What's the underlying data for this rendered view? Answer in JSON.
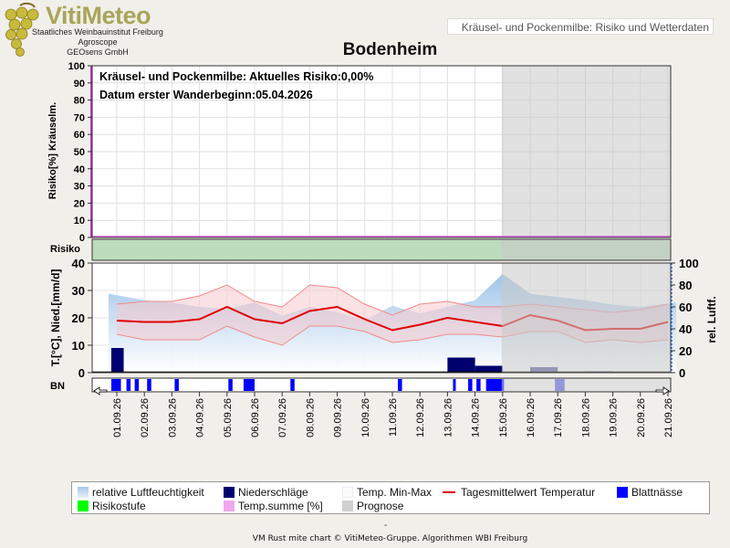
{
  "header": {
    "logo_title": "VitiMeteo",
    "logo_lines": [
      "Staatliches Weinbauinstitut Freiburg",
      "Agroscope",
      "GEOsens GmbH"
    ],
    "top_right_label": "Kräusel- und Pockenmilbe: Risiko und Wetterdaten",
    "page_title": "Bodenheim"
  },
  "chart_data": {
    "type": "line",
    "annotations": [
      "Kräusel- und Pockenmilbe: Aktuelles Risiko:0,00%",
      "Datum  erster Wanderbeginn:05.04.2026"
    ],
    "risk_panel": {
      "ylabel": "Risiko[%] Kräuselm.",
      "ylim": [
        0,
        100
      ],
      "yticks": [
        0,
        10,
        20,
        30,
        40,
        50,
        60,
        70,
        80,
        90,
        100
      ],
      "temp_summe_percent": 0,
      "risk_percent": 0
    },
    "risk_strip_label": "Risiko",
    "weather_panel": {
      "ylabel_left": "T.[°C], Nied.[mm/d]",
      "ylabel_right": "rel. Luftf.",
      "ylim_left": [
        0,
        40
      ],
      "yticks_left": [
        0,
        10,
        20,
        30,
        40
      ],
      "ylim_right": [
        0,
        100
      ],
      "yticks_right": [
        0,
        20,
        40,
        60,
        80,
        100
      ]
    },
    "bn_strip_label": "BN",
    "x_dates": [
      "01.09.26",
      "02.09.26",
      "03.09.26",
      "04.09.26",
      "05.09.26",
      "06.09.26",
      "07.09.26",
      "08.09.26",
      "09.09.26",
      "10.09.26",
      "11.09.26",
      "12.09.26",
      "13.09.26",
      "14.09.26",
      "15.09.26",
      "16.09.26",
      "17.09.26",
      "18.09.26",
      "19.09.26",
      "20.09.26",
      "21.09.26"
    ],
    "prognose_start_index": 14,
    "series": [
      {
        "name": "Tagesmittelwert Temperatur",
        "color": "#e00000",
        "x": [
          0,
          1,
          2,
          3,
          4,
          5,
          6,
          7,
          8,
          9,
          10,
          11,
          12,
          13,
          14,
          15,
          16,
          17,
          18,
          19,
          20
        ],
        "values": [
          19,
          18.5,
          18.5,
          19.5,
          24,
          19.5,
          18,
          22.5,
          24,
          19.5,
          15.5,
          17.5,
          20,
          18.5,
          17,
          21,
          19,
          15.5,
          16,
          16,
          18.5
        ]
      },
      {
        "name": "Temp. Max",
        "x": [
          0,
          1,
          2,
          3,
          4,
          5,
          6,
          7,
          8,
          9,
          10,
          11,
          12,
          13,
          14,
          15,
          16,
          17,
          18,
          19,
          20
        ],
        "values": [
          25,
          26,
          26,
          28,
          32,
          26,
          24,
          32,
          31,
          25,
          21,
          25,
          26,
          24,
          24,
          25,
          24,
          23,
          22,
          23,
          25
        ]
      },
      {
        "name": "Temp. Min",
        "x": [
          0,
          1,
          2,
          3,
          4,
          5,
          6,
          7,
          8,
          9,
          10,
          11,
          12,
          13,
          14,
          15,
          16,
          17,
          18,
          19,
          20
        ],
        "values": [
          14,
          12,
          12,
          12,
          17,
          13,
          10,
          17,
          17,
          15,
          11,
          12,
          14,
          14,
          13,
          15,
          15,
          11,
          12,
          11,
          12
        ]
      },
      {
        "name": "relative Luftfeuchtigkeit",
        "color": "#a7c8e8",
        "x": [
          -0.3,
          1,
          2,
          3,
          4,
          5,
          6,
          7,
          8,
          9,
          10,
          11,
          12,
          13,
          14,
          15,
          16,
          17,
          18,
          19,
          20.3
        ],
        "values": [
          72,
          66,
          64,
          60,
          58,
          64,
          52,
          60,
          55,
          48,
          61,
          54,
          60,
          66,
          90,
          72,
          69,
          66,
          62,
          60,
          64
        ]
      },
      {
        "name": "Niederschläge",
        "color": "#00006e",
        "x": [
          -0.2,
          12.5,
          13.5,
          15.5,
          17.5
        ],
        "widths": [
          0.45,
          1.0,
          1.0,
          1.0,
          1.0
        ],
        "values": [
          9,
          5.5,
          2.5,
          2,
          0.5
        ]
      }
    ],
    "leaf_wetness_segments": [
      [
        -0.2,
        0.15
      ],
      [
        0.35,
        0.5
      ],
      [
        0.65,
        0.8
      ],
      [
        1.1,
        1.25
      ],
      [
        2.1,
        2.25
      ],
      [
        4.05,
        4.2
      ],
      [
        4.6,
        5.0
      ],
      [
        6.3,
        6.45
      ],
      [
        10.2,
        10.35
      ],
      [
        12.2,
        12.3
      ],
      [
        12.75,
        12.9
      ],
      [
        13.05,
        13.2
      ],
      [
        13.4,
        14.05
      ],
      [
        15.9,
        16.25
      ]
    ],
    "legend": [
      {
        "label": "relative Luftfeuchtigkeit",
        "color": "#a7c8e8"
      },
      {
        "label": "Niederschläge",
        "color": "#00006e"
      },
      {
        "label": "Temp. Min-Max",
        "color": "#ffffff"
      },
      {
        "label": "Tagesmittelwert Temperatur",
        "color": "#e00000"
      },
      {
        "label": "Blattnässe",
        "color": "#0000ff"
      },
      {
        "label": "Risikostufe",
        "color": "#00ff00"
      },
      {
        "label": "Temp.summe [%]",
        "color": "#f0a8f0"
      },
      {
        "label": "Prognose",
        "color": "#d0d0d0"
      }
    ]
  },
  "footer": {
    "dash": "-",
    "credits": "VM Rust mite chart © VitiMeteo-Gruppe. Algorithmen WBI Freiburg"
  }
}
